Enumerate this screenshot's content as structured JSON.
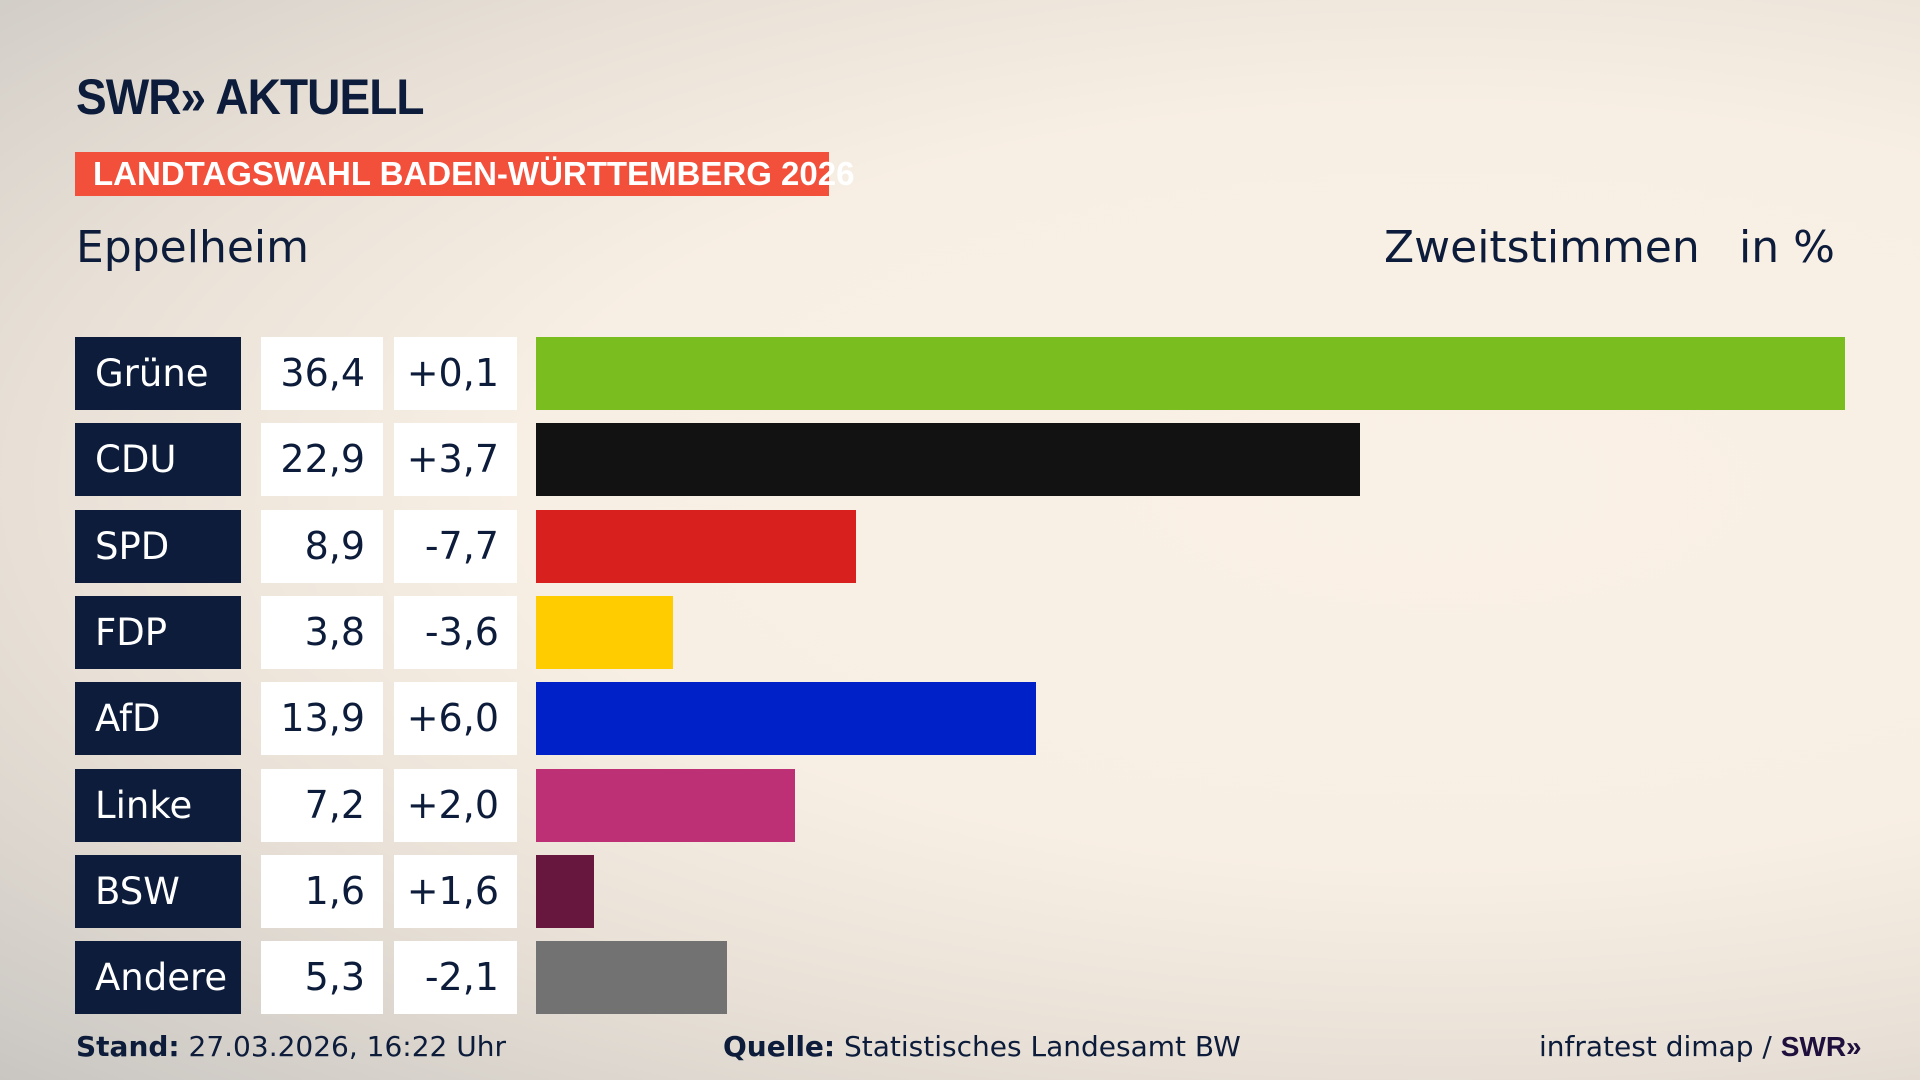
{
  "header": {
    "logo": "SWR» AKTUELL",
    "banner": "LANDTAGSWAHL BADEN-WÜRTTEMBERG 2026",
    "location": "Eppelheim",
    "vote_type": "Zweitstimmen",
    "unit": "in %"
  },
  "chart_data": {
    "type": "bar",
    "orientation": "horizontal",
    "categories": [
      "Grüne",
      "CDU",
      "SPD",
      "FDP",
      "AfD",
      "Linke",
      "BSW",
      "Andere"
    ],
    "values": [
      36.4,
      22.9,
      8.9,
      3.8,
      13.9,
      7.2,
      1.6,
      5.3
    ],
    "value_labels": [
      "36,4",
      "22,9",
      "8,9",
      "3,8",
      "13,9",
      "7,2",
      "1,6",
      "5,3"
    ],
    "changes": [
      "+0,1",
      "+3,7",
      "-7,7",
      "-3,6",
      "+6,0",
      "+2,0",
      "+1,6",
      "-2,1"
    ],
    "colors": [
      "#7abd1e",
      "#121212",
      "#d8201e",
      "#ffcc00",
      "#0021c8",
      "#bd3075",
      "#67173e",
      "#727272"
    ],
    "title": "Zweitstimmen",
    "ylabel": "in %",
    "grid": false
  },
  "footer": {
    "stand_label": "Stand:",
    "stand_value": "27.03.2026, 16:22 Uhr",
    "source_label": "Quelle:",
    "source_value": "Statistisches Landesamt BW",
    "credit": "infratest dimap /",
    "credit_logo": "SWR»"
  }
}
